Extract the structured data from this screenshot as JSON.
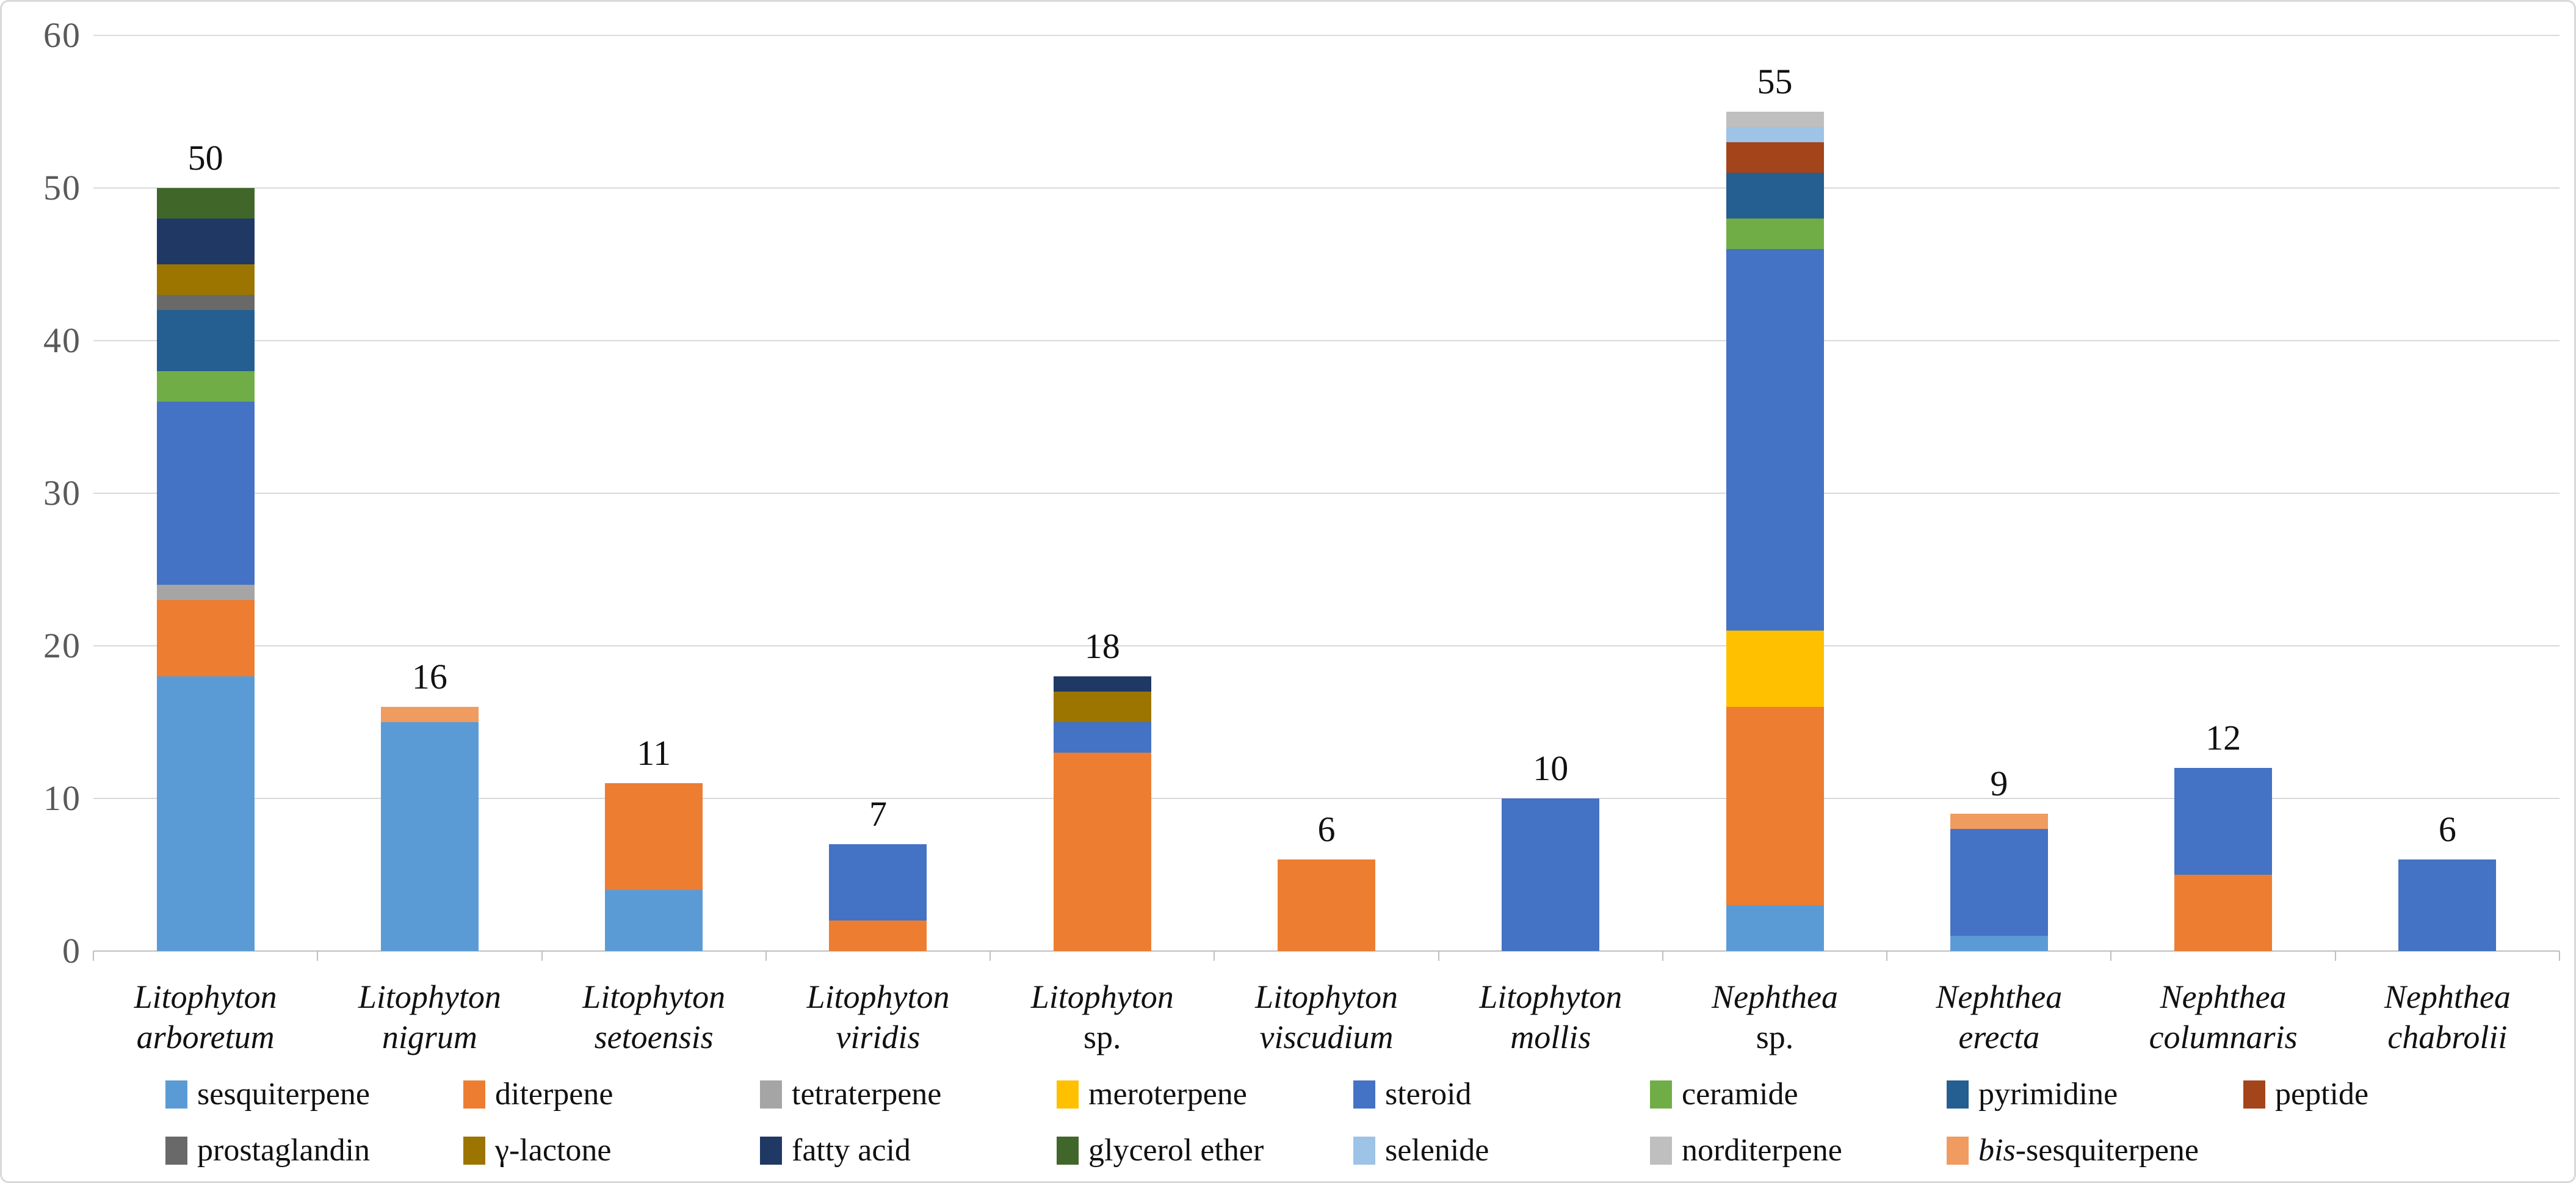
{
  "figure": {
    "background": "#FFFFFF",
    "frame_border_color": "#D9D9D9",
    "gridline_color": "#D9D9D9",
    "axis_line_color": "#BFBFBF",
    "tick_label_color": "#595959",
    "data_label_color": "#111111"
  },
  "chart_data": {
    "type": "bar",
    "stacked": true,
    "title": "",
    "xlabel": "",
    "ylabel": "",
    "ylim": [
      0,
      60
    ],
    "yticks": [
      0,
      10,
      20,
      30,
      40,
      50,
      60
    ],
    "grid": true,
    "legend_position": "bottom",
    "categories": [
      {
        "line1": "Litophyton",
        "line2": "arboretum",
        "line2_italic": true
      },
      {
        "line1": "Litophyton",
        "line2": "nigrum",
        "line2_italic": true
      },
      {
        "line1": "Litophyton",
        "line2": "setoensis",
        "line2_italic": true
      },
      {
        "line1": "Litophyton",
        "line2": "viridis",
        "line2_italic": true
      },
      {
        "line1": "Litophyton",
        "line2": "sp.",
        "line2_italic": false
      },
      {
        "line1": "Litophyton",
        "line2": "viscudium",
        "line2_italic": true
      },
      {
        "line1": "Litophyton",
        "line2": "mollis",
        "line2_italic": true
      },
      {
        "line1": "Nephthea",
        "line2": "sp.",
        "line2_italic": false
      },
      {
        "line1": "Nephthea",
        "line2": "erecta",
        "line2_italic": true
      },
      {
        "line1": "Nephthea",
        "line2": "columnaris",
        "line2_italic": true
      },
      {
        "line1": "Nephthea",
        "line2": "chabrolii",
        "line2_italic": true
      }
    ],
    "totals": [
      50,
      16,
      11,
      7,
      18,
      6,
      10,
      55,
      9,
      12,
      6
    ],
    "series": [
      {
        "name": "sesquiterpene",
        "key": "sesquiterpene",
        "color": "#5B9BD5",
        "values": [
          18,
          15,
          4,
          0,
          0,
          0,
          0,
          3,
          1,
          0,
          0
        ]
      },
      {
        "name": "diterpene",
        "key": "diterpene",
        "color": "#ED7D31",
        "values": [
          5,
          0,
          7,
          2,
          13,
          6,
          0,
          13,
          0,
          5,
          0
        ]
      },
      {
        "name": "tetraterpene",
        "key": "tetraterpene",
        "color": "#A5A5A5",
        "values": [
          1,
          0,
          0,
          0,
          0,
          0,
          0,
          0,
          0,
          0,
          0
        ]
      },
      {
        "name": "meroterpene",
        "key": "meroterpene",
        "color": "#FFC000",
        "values": [
          0,
          0,
          0,
          0,
          0,
          0,
          0,
          5,
          0,
          0,
          0
        ]
      },
      {
        "name": "steroid",
        "key": "steroid",
        "color": "#4472C4",
        "values": [
          12,
          0,
          0,
          5,
          2,
          0,
          10,
          25,
          7,
          7,
          6
        ]
      },
      {
        "name": "ceramide",
        "key": "ceramide",
        "color": "#70AD47",
        "values": [
          2,
          0,
          0,
          0,
          0,
          0,
          0,
          2,
          0,
          0,
          0
        ]
      },
      {
        "name": "pyrimidine",
        "key": "pyrimidine",
        "color": "#255E91",
        "values": [
          4,
          0,
          0,
          0,
          0,
          0,
          0,
          3,
          0,
          0,
          0
        ]
      },
      {
        "name": "peptide",
        "key": "peptide",
        "color": "#A3441A",
        "values": [
          0,
          0,
          0,
          0,
          0,
          0,
          0,
          2,
          0,
          0,
          0
        ]
      },
      {
        "name": "prostaglandin",
        "key": "prostaglandin",
        "color": "#696969",
        "values": [
          1,
          0,
          0,
          0,
          0,
          0,
          0,
          0,
          0,
          0,
          0
        ]
      },
      {
        "name": "γ-lactone",
        "key": "gamma-lactone",
        "color": "#9B7500",
        "values": [
          2,
          0,
          0,
          0,
          2,
          0,
          0,
          0,
          0,
          0,
          0
        ]
      },
      {
        "name": "fatty acid",
        "key": "fatty-acid",
        "color": "#203864",
        "values": [
          3,
          0,
          0,
          0,
          1,
          0,
          0,
          0,
          0,
          0,
          0
        ]
      },
      {
        "name": "glycerol ether",
        "key": "glycerol-ether",
        "color": "#41662A",
        "values": [
          2,
          0,
          0,
          0,
          0,
          0,
          0,
          0,
          0,
          0,
          0
        ]
      },
      {
        "name": "selenide",
        "key": "selenide",
        "color": "#9DC3E6",
        "values": [
          0,
          0,
          0,
          0,
          0,
          0,
          0,
          1,
          0,
          0,
          0
        ]
      },
      {
        "name": "norditerpene",
        "key": "norditerpene",
        "color": "#BFBFBF",
        "values": [
          0,
          0,
          0,
          0,
          0,
          0,
          0,
          1,
          0,
          0,
          0
        ]
      },
      {
        "name": "bis-sesquiterpene",
        "key": "bis-sesquiterpene",
        "color": "#F09B5F",
        "values": [
          0,
          1,
          0,
          0,
          0,
          0,
          0,
          0,
          1,
          0,
          0
        ],
        "italic_prefix": "bis",
        "label_rest": "-sesquiterpene"
      }
    ]
  }
}
